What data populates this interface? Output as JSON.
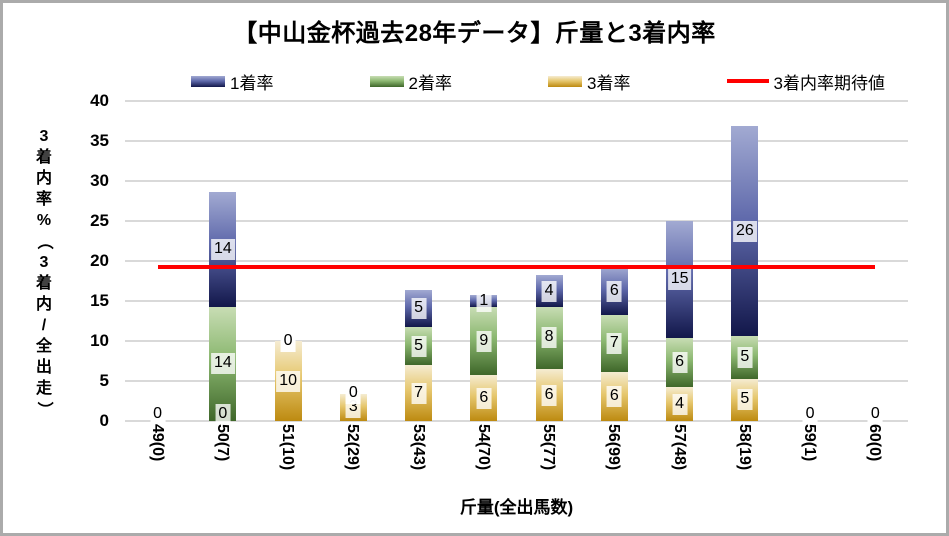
{
  "window": {
    "border_color": "#ababab",
    "background": "#ffffff"
  },
  "chart_data": {
    "type": "bar",
    "stacked": true,
    "title": "【中山金杯過去28年データ】斤量と3着内率",
    "xlabel": "斤量(全出馬数)",
    "ylabel": "3着内率%（3着内/全出走）",
    "ylim": [
      0,
      40
    ],
    "yticks": [
      0,
      5,
      10,
      15,
      20,
      25,
      30,
      35,
      40
    ],
    "grid": true,
    "gridline_color": "#d9d9d9",
    "legend_position": "top",
    "categories": [
      "49(0)",
      "50(7)",
      "51(10)",
      "52(29)",
      "53(43)",
      "54(70)",
      "55(77)",
      "56(99)",
      "57(48)",
      "58(19)",
      "59(1)",
      "60(0)"
    ],
    "series": [
      {
        "key": "rate-1st",
        "name": "1着率",
        "color_top": "#a2aad2",
        "color_mid": "#5f69ab",
        "color_bottom": "#12174a",
        "values": [
          0,
          14.3,
          0,
          0,
          4.7,
          1.4,
          3.9,
          6.1,
          14.6,
          26.3,
          0,
          0
        ],
        "labels": [
          "0",
          "14",
          "0",
          "0",
          "5",
          "1",
          "4",
          "6",
          "15",
          "26",
          "0",
          "0"
        ]
      },
      {
        "key": "rate-2nd",
        "name": "2着率",
        "color_top": "#c8ddb4",
        "color_mid": "#8cb871",
        "color_bottom": "#3f672a",
        "values": [
          0,
          14.3,
          0,
          0,
          4.7,
          8.6,
          7.8,
          7.1,
          6.2,
          5.3,
          0,
          0
        ],
        "labels": [
          "0",
          "14",
          "0",
          "0",
          "5",
          "9",
          "8",
          "7",
          "6",
          "5",
          "0",
          "0"
        ]
      },
      {
        "key": "rate-3rd",
        "name": "3着率",
        "color_top": "#f5ecd2",
        "color_mid": "#e6c76e",
        "color_bottom": "#bd8a10",
        "values": [
          0,
          0,
          10,
          3.4,
          7,
          5.7,
          6.5,
          6.1,
          4.2,
          5.3,
          0,
          0
        ],
        "labels": [
          "0",
          "0",
          "10",
          "3",
          "7",
          "6",
          "6",
          "6",
          "4",
          "5",
          "0",
          "0"
        ]
      }
    ],
    "stack_order_bottom_to_top": [
      "rate-3rd",
      "rate-2nd",
      "rate-1st"
    ],
    "expected_line": {
      "key": "expected-line",
      "name": "3着内率期待値",
      "value": 19.3,
      "color": "#ff0000"
    }
  }
}
